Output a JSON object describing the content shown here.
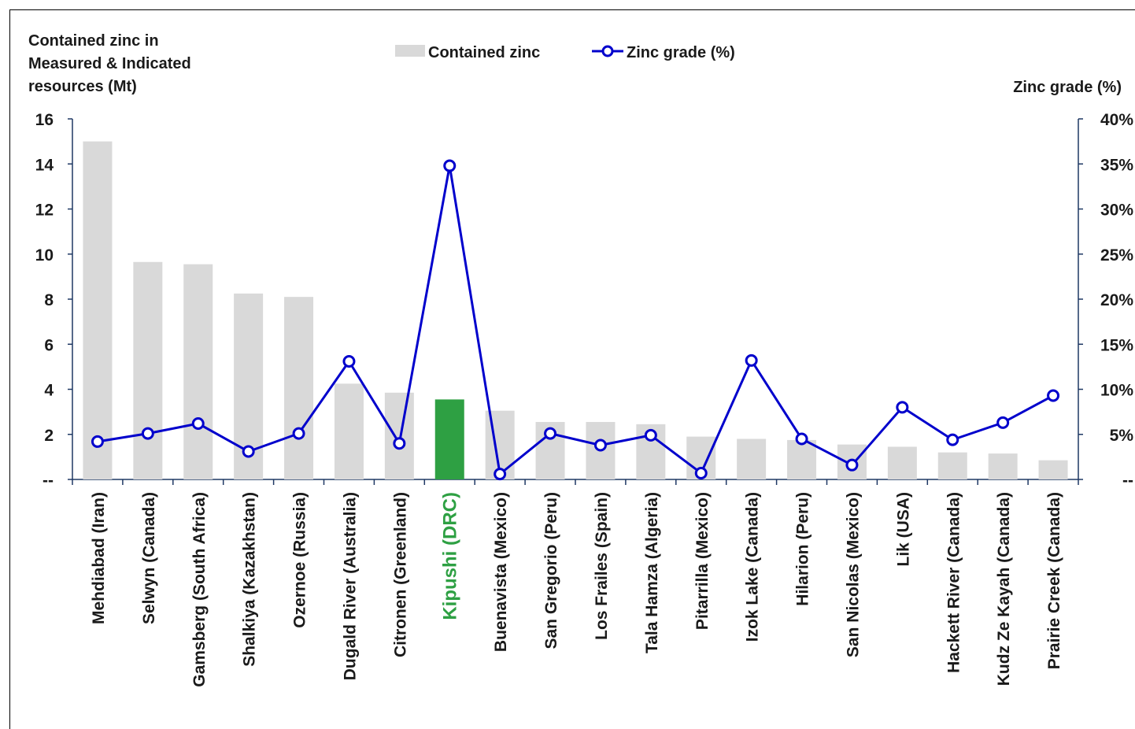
{
  "chart_data": {
    "type": "bar",
    "y_left_label_lines": [
      "Contained zinc in",
      "Measured & Indicated",
      "resources (Mt)"
    ],
    "y_right_label": "Zinc grade (%)",
    "categories": [
      "Mehdiabad (Iran)",
      "Selwyn (Canada)",
      "Gamsberg (South Africa)",
      "Shalkiya (Kazakhstan)",
      "Ozernoe (Russia)",
      "Dugald River (Australia)",
      "Citronen (Greenland)",
      "Kipushi (DRC)",
      "Buenavista (Mexico)",
      "San Gregorio (Peru)",
      "Los Frailes (Spain)",
      "Tala Hamza (Algeria)",
      "Pitarrilla (Mexico)",
      "Izok Lake (Canada)",
      "Hilarion (Peru)",
      "San Nicolas (Mexico)",
      "Lik (USA)",
      "Hackett River (Canada)",
      "Kudz Ze Kayah (Canada)",
      "Prairie Creek (Canada)"
    ],
    "highlight_index": 7,
    "series": [
      {
        "name": "Contained zinc",
        "axis": "left",
        "kind": "bar",
        "values": [
          15.0,
          9.65,
          9.55,
          8.25,
          8.1,
          4.25,
          3.85,
          3.55,
          3.05,
          2.55,
          2.55,
          2.45,
          1.9,
          1.8,
          1.75,
          1.55,
          1.45,
          1.2,
          1.15,
          0.85
        ]
      },
      {
        "name": "Zinc grade (%)",
        "axis": "right",
        "kind": "line",
        "values": [
          4.2,
          5.1,
          6.2,
          3.1,
          5.1,
          13.1,
          4.0,
          34.8,
          0.6,
          5.1,
          3.8,
          4.9,
          0.7,
          13.2,
          4.5,
          1.6,
          8.0,
          4.4,
          6.3,
          9.3
        ]
      }
    ],
    "y_left": {
      "range": [
        0,
        16
      ],
      "ticks": [
        "--",
        "2",
        "4",
        "6",
        "8",
        "10",
        "12",
        "14",
        "16"
      ]
    },
    "y_right": {
      "range": [
        0,
        40
      ],
      "ticks": [
        "--",
        "5%",
        "10%",
        "15%",
        "20%",
        "25%",
        "30%",
        "35%",
        "40%"
      ]
    },
    "legend_position": "top-center",
    "grid": false,
    "colors": {
      "bar": "#d9d9d9",
      "highlight_bar": "#2ea043",
      "line": "#0000cc",
      "axis": "#1f3864",
      "text": "#1a1a1a",
      "highlight_text": "#2ea043"
    }
  }
}
